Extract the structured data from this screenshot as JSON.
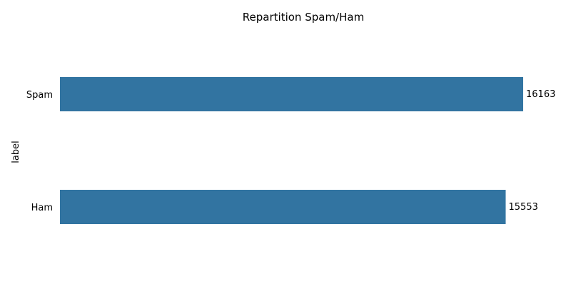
{
  "chart_data": {
    "type": "bar",
    "orientation": "horizontal",
    "title": "Repartition Spam/Ham",
    "xlabel": "",
    "ylabel": "label",
    "categories": [
      "Spam",
      "Ham"
    ],
    "values": [
      16163,
      15553
    ],
    "data_labels": [
      "16163",
      "15553"
    ],
    "xlim": [
      0,
      16163
    ],
    "grid": false,
    "legend": "none",
    "bar_color": "#3274a1"
  }
}
